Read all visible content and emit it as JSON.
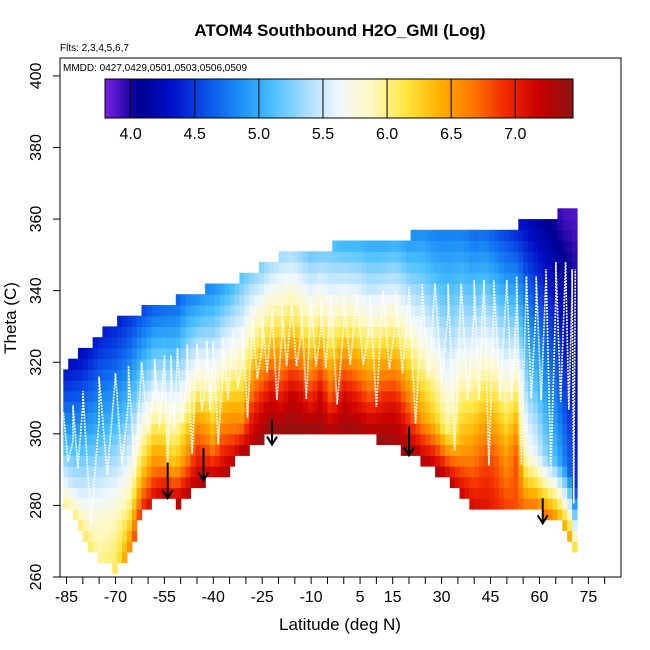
{
  "chart_data": {
    "type": "heatmap",
    "title": "ATOM4 Southbound H2O_GMI (Log)",
    "flights_label": "Flts: 2,3,4,5,6,7",
    "dates_label": "MMDD: 0427,0429,0501,0503,0506,0509",
    "xlabel": "Latitude (deg N)",
    "ylabel": "Theta (C)",
    "xlim": [
      -87,
      85
    ],
    "ylim": [
      260,
      405
    ],
    "x_ticks": [
      -85,
      -70,
      -55,
      -40,
      -25,
      -10,
      5,
      15,
      30,
      45,
      60,
      75
    ],
    "x_minor_ticks": [
      -80,
      -75,
      -65,
      -60,
      -50,
      -45,
      -35,
      -30,
      -20,
      -15,
      -5,
      0,
      10,
      20,
      25,
      35,
      40,
      50,
      55,
      65,
      70,
      80
    ],
    "y_ticks": [
      260,
      280,
      300,
      320,
      340,
      360,
      380,
      400
    ],
    "colorbar": {
      "min": 3.8,
      "max": 7.45,
      "ticks": [
        4.0,
        4.5,
        5.0,
        5.5,
        6.0,
        6.5,
        7.0
      ],
      "tick_labels": [
        "4.0",
        "4.5",
        "5.0",
        "5.5",
        "6.0",
        "6.5",
        "7.0"
      ],
      "colors": [
        "#7c1ee6",
        "#00008f",
        "#0010c8",
        "#0a4fe8",
        "#1a8df5",
        "#49bfff",
        "#a6dcff",
        "#f0f8ff",
        "#fff8c0",
        "#ffe640",
        "#ffb000",
        "#ff7800",
        "#f02800",
        "#c80000",
        "#8c1414"
      ]
    },
    "profile": {
      "latitude": [
        -86,
        -83,
        -80,
        -75,
        -70,
        -66,
        -62,
        -58,
        -55,
        -53,
        -51,
        -48,
        -45,
        -42,
        -40,
        -37,
        -34,
        -31,
        -28,
        -25,
        -22,
        -19,
        -16,
        -13,
        -10,
        -7,
        -4,
        0,
        4,
        8,
        12,
        16,
        20,
        24,
        28,
        32,
        36,
        40,
        43,
        46,
        50,
        53,
        56,
        59,
        62,
        65,
        68,
        70,
        71
      ],
      "theta_top": [
        315,
        320,
        322,
        326,
        330,
        331,
        333,
        334,
        335,
        336,
        336,
        338,
        339,
        339,
        340,
        340,
        341,
        343,
        344,
        346,
        347,
        349,
        350,
        350,
        350,
        351,
        351,
        352,
        352,
        353,
        353,
        354,
        354,
        355,
        356,
        356,
        356,
        356,
        357,
        357,
        357,
        357,
        358,
        358,
        358,
        360,
        362,
        362,
        360
      ],
      "theta_surface": [
        280,
        277,
        272,
        264,
        262,
        266,
        278,
        281,
        282,
        281,
        280,
        282,
        285,
        287,
        287,
        288,
        291,
        295,
        296,
        298,
        300,
        301,
        301,
        301,
        301,
        300,
        299,
        299,
        300,
        299,
        298,
        296,
        294,
        292,
        290,
        287,
        283,
        279,
        278,
        278,
        278,
        278,
        278,
        278,
        277,
        276,
        273,
        269,
        265
      ],
      "h2o_log_low": [
        6.0,
        6.1,
        6.1,
        6.0,
        6.1,
        6.6,
        7.0,
        7.2,
        7.3,
        7.3,
        7.3,
        7.3,
        7.3,
        7.3,
        7.3,
        7.3,
        7.3,
        7.3,
        7.3,
        7.4,
        7.4,
        7.4,
        7.4,
        7.4,
        7.4,
        7.4,
        7.4,
        7.4,
        7.4,
        7.4,
        7.4,
        7.4,
        7.4,
        7.3,
        7.3,
        7.3,
        7.2,
        7.1,
        7.1,
        7.0,
        6.9,
        6.8,
        6.8,
        6.8,
        6.7,
        6.6,
        6.5,
        6.5,
        6.4
      ],
      "h2o_log_midlevel": [
        5.6,
        5.5,
        5.6,
        5.8,
        5.9,
        6.0,
        6.3,
        6.6,
        6.5,
        6.3,
        6.4,
        6.6,
        6.9,
        6.7,
        6.5,
        6.8,
        6.7,
        6.5,
        7.0,
        7.1,
        7.2,
        7.0,
        7.2,
        7.1,
        6.9,
        7.2,
        6.8,
        7.2,
        7.0,
        6.8,
        7.0,
        7.1,
        6.8,
        6.5,
        6.3,
        6.0,
        6.4,
        6.6,
        6.8,
        6.8,
        6.5,
        6.8,
        5.8,
        5.6,
        5.3,
        5.1,
        4.8,
        4.6,
        4.4
      ],
      "h2o_log_upper": [
        4.4,
        4.3,
        4.3,
        4.4,
        4.4,
        4.5,
        4.6,
        4.7,
        4.7,
        4.7,
        4.7,
        4.8,
        4.8,
        4.9,
        4.9,
        5.0,
        5.1,
        5.2,
        5.3,
        5.3,
        5.4,
        5.4,
        5.4,
        5.3,
        5.2,
        5.2,
        5.2,
        5.1,
        5.1,
        5.0,
        5.0,
        5.0,
        4.9,
        4.9,
        4.8,
        4.8,
        4.8,
        4.7,
        4.7,
        4.6,
        4.5,
        4.4,
        4.3,
        4.2,
        4.1,
        4.0,
        3.9,
        3.9,
        3.9
      ]
    },
    "arrows": [
      {
        "latitude": -54,
        "theta_start": 292,
        "theta_end": 282
      },
      {
        "latitude": -43,
        "theta_start": 296,
        "theta_end": 287
      },
      {
        "latitude": -22,
        "theta_start": 304,
        "theta_end": 297
      },
      {
        "latitude": 20,
        "theta_start": 302,
        "theta_end": 294
      },
      {
        "latitude": 61,
        "theta_start": 282,
        "theta_end": 275
      }
    ]
  }
}
